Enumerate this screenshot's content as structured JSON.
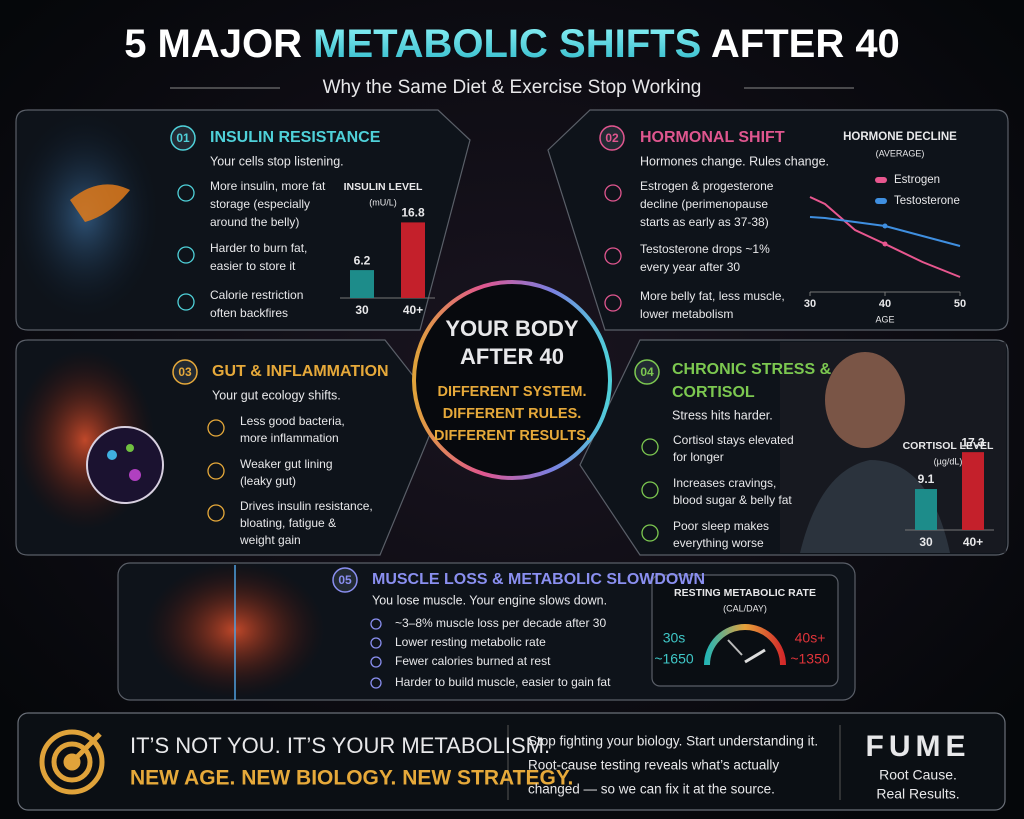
{
  "header": {
    "title_pre": "5 MAJOR ",
    "title_highlight": "METABOLIC SHIFTS",
    "title_post": " AFTER 40",
    "subtitle": "Why the Same Diet & Exercise Stop Working"
  },
  "center": {
    "title": [
      "YOUR BODY",
      "AFTER 40"
    ],
    "lines": [
      "DIFFERENT SYSTEM.",
      "DIFFERENT RULES.",
      "DIFFERENT RESULTS."
    ]
  },
  "sections": [
    {
      "number": "01",
      "title": [
        "INSULIN RESISTANCE"
      ],
      "tagline": "Your cells stop listening.",
      "points": [
        [
          "More insulin, more fat",
          "storage (especially",
          "around the belly)"
        ],
        [
          "Harder to burn fat,",
          "easier to store it"
        ],
        [
          "Calorie restriction",
          "often backfires"
        ]
      ],
      "chart": {
        "title": "INSULIN LEVEL",
        "unit": "(mU/L)",
        "categories": [
          "30",
          "40+"
        ],
        "values": [
          6.2,
          16.8
        ],
        "colors": [
          "#1d8c8a",
          "#c4202b"
        ]
      }
    },
    {
      "number": "02",
      "title": [
        "HORMONAL SHIFT"
      ],
      "tagline": "Hormones change. Rules change.",
      "points": [
        [
          "Estrogen & progesterone",
          "decline (perimenopause",
          "starts as early as 37-38)"
        ],
        [
          "Testosterone drops ~1%",
          "every year after 30"
        ],
        [
          "More belly fat, less muscle,",
          "lower metabolism"
        ]
      ],
      "chart": {
        "title": "HORMONE DECLINE",
        "subtitle": "(AVERAGE)",
        "x_label": "AGE",
        "xlim": [
          30,
          50
        ],
        "xticks": [
          30,
          40,
          50
        ],
        "ylim": [
          0,
          100
        ],
        "x": [
          30,
          32,
          34,
          36,
          40,
          45,
          50
        ],
        "series": [
          {
            "name": "Estrogen",
            "color": "#e8578f",
            "values": [
              95,
              88,
              75,
              62,
              48,
              30,
              15
            ]
          },
          {
            "name": "Testosterone",
            "color": "#3f8fe0",
            "values": [
              75,
              74,
              72,
              70,
              66,
              56,
              46
            ]
          }
        ]
      }
    },
    {
      "number": "03",
      "title": [
        "GUT & INFLAMMATION"
      ],
      "tagline": "Your gut ecology shifts.",
      "points": [
        [
          "Less good bacteria,",
          "more inflammation"
        ],
        [
          "Weaker gut lining",
          "(leaky gut)"
        ],
        [
          "Drives insulin resistance,",
          "bloating, fatigue &",
          "weight gain"
        ]
      ]
    },
    {
      "number": "04",
      "title": [
        "CHRONIC STRESS &",
        "CORTISOL"
      ],
      "tagline": "Stress hits harder.",
      "points": [
        [
          "Cortisol stays elevated",
          "for longer"
        ],
        [
          "Increases cravings,",
          "blood sugar & belly fat"
        ],
        [
          "Poor sleep makes",
          "everything worse"
        ]
      ],
      "chart": {
        "title": "CORTISOL LEVEL",
        "unit": "(µg/dL)",
        "categories": [
          "30",
          "40+"
        ],
        "values": [
          9.1,
          17.3
        ],
        "colors": [
          "#1d8c8a",
          "#c4202b"
        ]
      }
    },
    {
      "number": "05",
      "title": [
        "MUSCLE LOSS & METABOLIC SLOWDOWN"
      ],
      "tagline": "You lose muscle. Your engine slows down.",
      "points": [
        [
          "~3–8% muscle loss per decade after 30"
        ],
        [
          "Lower resting metabolic rate"
        ],
        [
          "Fewer calories burned at rest"
        ],
        [
          "Harder to build muscle, easier to gain fat"
        ]
      ],
      "chart": {
        "title": "RESTING METABOLIC RATE",
        "unit": "(CAL/DAY)",
        "categories": [
          "30s",
          "40s+"
        ],
        "values": [
          1650,
          1350
        ],
        "value_labels": [
          "~1650",
          "~1350"
        ]
      }
    }
  ],
  "footer": {
    "headline": "IT’S NOT YOU. IT’S YOUR METABOLISM.",
    "subheadline": "NEW AGE. NEW BIOLOGY. NEW STRATEGY.",
    "message": [
      "Stop fighting your biology. Start understanding it.",
      "Root-cause testing reveals what’s actually",
      "changed — so we can fix it at the source."
    ],
    "brand": "FUME",
    "tagline": [
      "Root Cause.",
      "Real Results."
    ]
  }
}
